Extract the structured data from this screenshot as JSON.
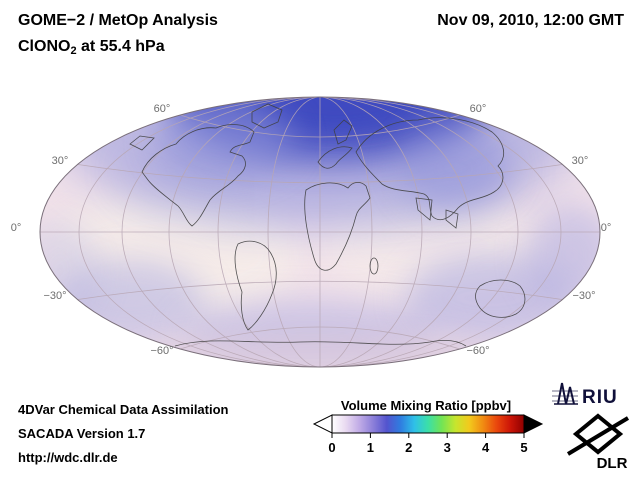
{
  "header": {
    "title": "GOME−2 / MetOp Analysis",
    "subtitle_prefix": "ClONO",
    "subtitle_sub": "2",
    "subtitle_suffix": " at 55.4 hPa",
    "datetime": "Nov 09, 2010, 12:00 GMT"
  },
  "map": {
    "labels": [
      "60°",
      "30°",
      "0°",
      "−30°",
      "−60°",
      "60°",
      "30°",
      "0°",
      "−30°",
      "−60°"
    ]
  },
  "map_colors": {
    "base": "#f2e2ea",
    "cream": "#f7efe9",
    "polar_core": "#3c49c0",
    "polar_mid": "#8d92da",
    "band": "#a9a8df",
    "south_tint": "#d8c6da",
    "graticule": "#b8a7b4",
    "coastline": "#3f3f3f",
    "outline": "#7a6f7a"
  },
  "colorbar": {
    "title": "Volume Mixing Ratio [ppbv]",
    "ticks": [
      "0",
      "1",
      "2",
      "3",
      "4",
      "5"
    ],
    "colors": [
      "#ffffff",
      "#e9daf1",
      "#c0abe6",
      "#8c7fd9",
      "#5354ce",
      "#2f7de0",
      "#2fc0e8",
      "#3bdfa8",
      "#72e455",
      "#c6e52e",
      "#f2ca1d",
      "#f18c12",
      "#ea470d",
      "#cc1507",
      "#8f0000"
    ],
    "arrow_left": "#ffffff",
    "arrow_right": "#000000"
  },
  "footer": {
    "line1": "4DVar Chemical Data Assimilation",
    "line2": "SACADA Version 1.7",
    "line3": "http://wdc.dlr.de"
  },
  "logos": {
    "riu": "RIU",
    "dlr": "DLR"
  }
}
